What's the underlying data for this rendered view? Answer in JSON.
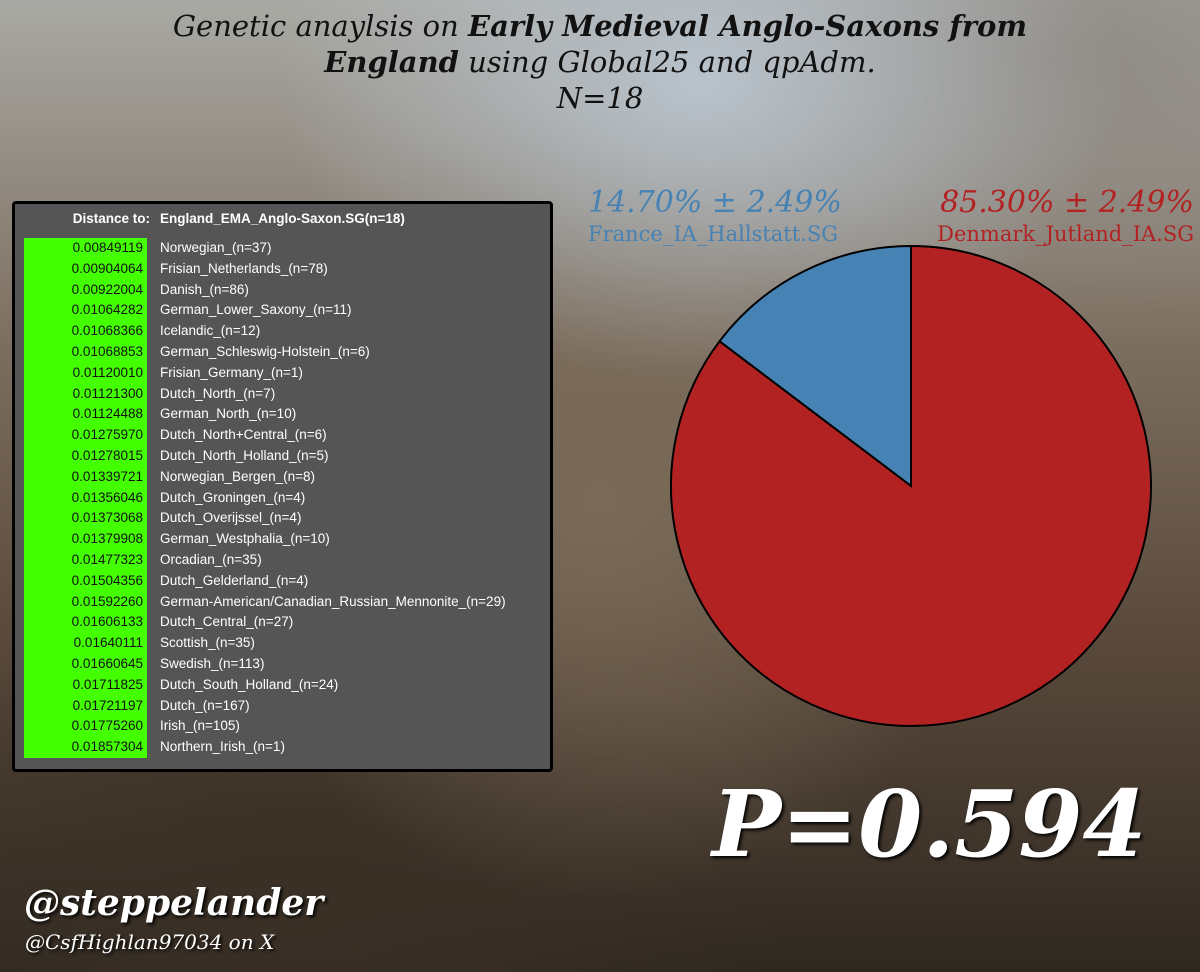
{
  "title": {
    "lines": [
      [
        "Genetic anaylsis on",
        "Early Medieval Anglo-Saxons from"
      ],
      [
        "England",
        "using Global25 and qpAdm."
      ],
      [
        "N=18"
      ]
    ]
  },
  "table": {
    "header": [
      "Distance to:",
      "England_EMA_Anglo-Saxon.SG(n=18)"
    ],
    "rows": [
      [
        "0.00849119",
        "Norwegian_(n=37)"
      ],
      [
        "0.00904064",
        "Frisian_Netherlands_(n=78)"
      ],
      [
        "0.00922004",
        "Danish_(n=86)"
      ],
      [
        "0.01064282",
        "German_Lower_Saxony_(n=11)"
      ],
      [
        "0.01068366",
        "Icelandic_(n=12)"
      ],
      [
        "0.01068853",
        "German_Schleswig-Holstein_(n=6)"
      ],
      [
        "0.01120010",
        "Frisian_Germany_(n=1)"
      ],
      [
        "0.01121300",
        "Dutch_North_(n=7)"
      ],
      [
        "0.01124488",
        "German_North_(n=10)"
      ],
      [
        "0.01275970",
        "Dutch_North+Central_(n=6)"
      ],
      [
        "0.01278015",
        "Dutch_North_Holland_(n=5)"
      ],
      [
        "0.01339721",
        "Norwegian_Bergen_(n=8)"
      ],
      [
        "0.01356046",
        "Dutch_Groningen_(n=4)"
      ],
      [
        "0.01373068",
        "Dutch_Overijssel_(n=4)"
      ],
      [
        "0.01379908",
        "German_Westphalia_(n=10)"
      ],
      [
        "0.01477323",
        "Orcadian_(n=35)"
      ],
      [
        "0.01504356",
        "Dutch_Gelderland_(n=4)"
      ],
      [
        "0.01592260",
        "German-American/Canadian_Russian_Mennonite_(n=29)"
      ],
      [
        "0.01606133",
        "Dutch_Central_(n=27)"
      ],
      [
        "0.01640111",
        "Scottish_(n=35)"
      ],
      [
        "0.01660645",
        "Swedish_(n=113)"
      ],
      [
        "0.01711825",
        "Dutch_South_Holland_(n=24)"
      ],
      [
        "0.01721197",
        "Dutch_(n=167)"
      ],
      [
        "0.01775260",
        "Irish_(n=105)"
      ],
      [
        "0.01857304",
        "Northern_Irish_(n=1)"
      ]
    ]
  },
  "chart_data": {
    "type": "pie",
    "categories": [
      "France_IA_Hallstatt.SG",
      "Denmark_Jutland_IA.SG"
    ],
    "values": [
      14.7,
      85.3
    ],
    "value_labels": [
      "14.70% ± 2.49%",
      "85.30% ± 2.49%"
    ],
    "colors": [
      "#4682b4",
      "#b22222"
    ]
  },
  "p_value": "P=0.594",
  "handles": [
    "@steppelander",
    "@CsfHighlan97034 on X"
  ]
}
